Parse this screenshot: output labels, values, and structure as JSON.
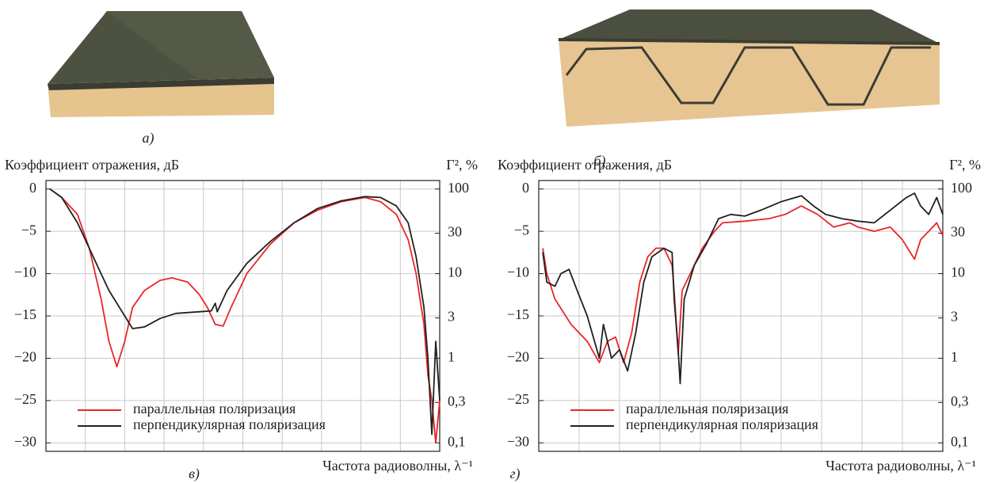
{
  "figure": {
    "photo_labels": [
      "а)",
      "б)"
    ]
  },
  "chart_data": [
    {
      "type": "line",
      "panel_label": "в)",
      "y_label": "Коэффициент отражения, дБ",
      "y2_label": "Γ², %",
      "x_label": "Частота радиоволны, λ⁻¹",
      "xlim": [
        0,
        10
      ],
      "xticks": [
        1,
        2,
        3,
        4,
        5,
        6,
        7,
        8,
        9
      ],
      "x_tick_labels": false,
      "ylim": [
        -31,
        1
      ],
      "yticks": [
        0,
        {
          "value": -5,
          "label": "−5"
        },
        {
          "value": -10,
          "label": "−10"
        },
        {
          "value": -15,
          "label": "−15"
        },
        {
          "value": -20,
          "label": "−20"
        },
        {
          "value": -25,
          "label": "−25"
        },
        {
          "value": -30,
          "label": "−30"
        }
      ],
      "y2lim": [
        0.0794,
        125.9
      ],
      "y2scale": "log",
      "y2ticks": [
        100,
        30,
        10,
        3,
        1,
        {
          "value": 0.3,
          "label": "0,3"
        },
        {
          "value": 0.1,
          "label": "0,1"
        }
      ],
      "grid": true,
      "legend": "lower left",
      "series": [
        {
          "name": "параллельная поляризация",
          "color": "#e8262a",
          "x": [
            0.1,
            0.4,
            0.8,
            1.1,
            1.4,
            1.6,
            1.8,
            2.0,
            2.2,
            2.5,
            2.9,
            3.2,
            3.6,
            3.9,
            4.1,
            4.3,
            4.5,
            4.7,
            5.1,
            5.7,
            6.3,
            6.9,
            7.5,
            8.1,
            8.5,
            8.9,
            9.2,
            9.4,
            9.6,
            9.7,
            9.8,
            9.9,
            10.0
          ],
          "values": [
            0,
            -1,
            -3,
            -7,
            -13,
            -18,
            -21,
            -18,
            -14,
            -12,
            -10.8,
            -10.5,
            -11,
            -12.5,
            -14,
            -16,
            -16.2,
            -14,
            -10,
            -6.5,
            -4,
            -2.5,
            -1.5,
            -1,
            -1.5,
            -3,
            -6,
            -10,
            -16,
            -22,
            -25,
            -30,
            -25
          ]
        },
        {
          "name": "перпендикулярная поляризация",
          "color": "#231f20",
          "x": [
            0.1,
            0.4,
            0.8,
            1.2,
            1.6,
            2.0,
            2.2,
            2.5,
            2.9,
            3.3,
            3.9,
            4.2,
            4.3,
            4.35,
            4.6,
            5.1,
            5.7,
            6.3,
            6.9,
            7.5,
            8.1,
            8.5,
            8.9,
            9.2,
            9.4,
            9.6,
            9.7,
            9.8,
            9.9,
            10.0
          ],
          "values": [
            0,
            -1,
            -4,
            -8,
            -12,
            -15,
            -16.5,
            -16.3,
            -15.3,
            -14.7,
            -14.5,
            -14.4,
            -13.5,
            -14.5,
            -12,
            -8.8,
            -6.2,
            -4,
            -2.3,
            -1.4,
            -0.9,
            -1,
            -2,
            -4,
            -8,
            -14,
            -20,
            -29,
            -18,
            -25
          ]
        }
      ]
    },
    {
      "type": "line",
      "panel_label": "г)",
      "y_label": "Коэффициент отражения, дБ",
      "y2_label": "Γ², %",
      "x_label": "Частота радиоволны, λ⁻¹",
      "xlim": [
        0,
        10
      ],
      "xticks": [
        1,
        2,
        3,
        4,
        5,
        6,
        7,
        8,
        9
      ],
      "x_tick_labels": false,
      "ylim": [
        -31,
        1
      ],
      "yticks": [
        0,
        {
          "value": -5,
          "label": "−5"
        },
        {
          "value": -10,
          "label": "−10"
        },
        {
          "value": -15,
          "label": "−15"
        },
        {
          "value": -20,
          "label": "−20"
        },
        {
          "value": -25,
          "label": "−25"
        },
        {
          "value": -30,
          "label": "−30"
        }
      ],
      "y2lim": [
        0.0794,
        125.9
      ],
      "y2scale": "log",
      "y2ticks": [
        100,
        30,
        10,
        3,
        1,
        {
          "value": 0.3,
          "label": "0,3"
        },
        {
          "value": 0.1,
          "label": "0,1"
        }
      ],
      "grid": true,
      "legend": "lower left",
      "series": [
        {
          "name": "параллельная поляризация",
          "color": "#e8262a",
          "x": [
            0.1,
            0.2,
            0.4,
            0.8,
            1.2,
            1.5,
            1.7,
            1.9,
            2.1,
            2.3,
            2.5,
            2.7,
            2.9,
            3.1,
            3.3,
            3.35,
            3.45,
            3.55,
            3.75,
            4.05,
            4.35,
            4.55,
            5.1,
            5.7,
            6.1,
            6.5,
            6.9,
            7.3,
            7.7,
            7.9,
            8.3,
            8.7,
            9.0,
            9.3,
            9.45,
            9.65,
            9.85,
            10.0
          ],
          "values": [
            -7,
            -10,
            -13,
            -16,
            -18,
            -20.5,
            -18,
            -17.5,
            -20.5,
            -17,
            -11,
            -8,
            -7,
            -7,
            -9,
            -12,
            -19.5,
            -12,
            -10,
            -7,
            -5,
            -4,
            -3.8,
            -3.5,
            -3,
            -2,
            -3,
            -4.5,
            -4,
            -4.5,
            -5,
            -4.5,
            -6,
            -8.3,
            -6,
            -5,
            -4,
            -5.5
          ]
        },
        {
          "name": "перпендикулярная поляризация",
          "color": "#231f20",
          "x": [
            0.1,
            0.2,
            0.4,
            0.55,
            0.75,
            0.95,
            1.2,
            1.5,
            1.6,
            1.8,
            2.0,
            2.2,
            2.4,
            2.6,
            2.8,
            3.1,
            3.3,
            3.35,
            3.45,
            3.5,
            3.6,
            3.85,
            4.15,
            4.45,
            4.75,
            5.1,
            5.5,
            6.0,
            6.5,
            6.8,
            7.1,
            7.5,
            7.9,
            8.3,
            8.7,
            9.1,
            9.3,
            9.45,
            9.65,
            9.85,
            10.0
          ],
          "values": [
            -7.5,
            -11,
            -11.5,
            -10,
            -9.5,
            -12,
            -15,
            -20,
            -16,
            -20,
            -19,
            -21.5,
            -17,
            -11,
            -8,
            -7,
            -7.5,
            -13,
            -19,
            -23,
            -13,
            -9,
            -6.5,
            -3.5,
            -3,
            -3.2,
            -2.5,
            -1.5,
            -0.8,
            -2,
            -3,
            -3.5,
            -3.8,
            -4,
            -2.5,
            -1,
            -0.5,
            -2,
            -3,
            -1,
            -3
          ]
        }
      ]
    }
  ]
}
